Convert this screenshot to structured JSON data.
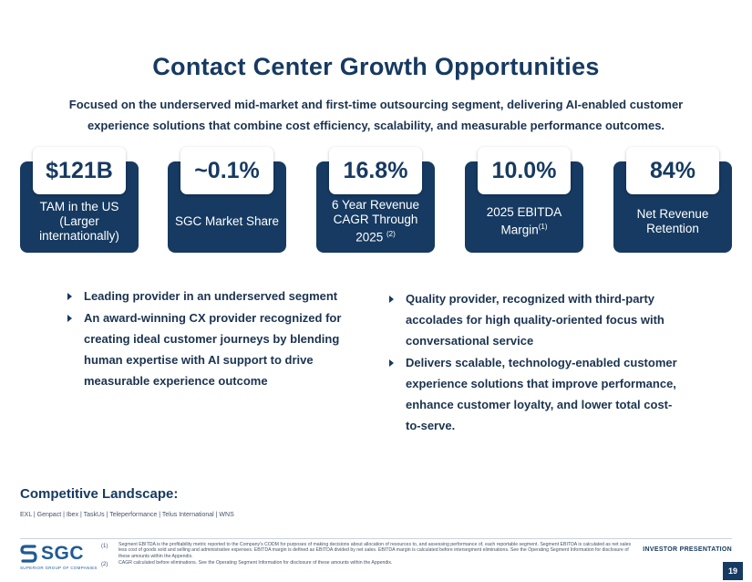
{
  "title": "Contact Center Growth Opportunities",
  "subtitle": "Focused on the underserved mid-market and first-time outsourcing segment, delivering AI-enabled customer experience solutions that combine cost efficiency, scalability, and measurable performance outcomes.",
  "stats": [
    {
      "value": "$121B",
      "label": "TAM in the US (Larger internationally)",
      "note": ""
    },
    {
      "value": "~0.1%",
      "label": "SGC Market Share",
      "note": ""
    },
    {
      "value": "16.8%",
      "label": "6 Year Revenue CAGR Through 2025",
      "note": "(2)"
    },
    {
      "value": "10.0%",
      "label": "2025 EBITDA Margin",
      "note": "(1)"
    },
    {
      "value": "84%",
      "label": "Net Revenue Retention",
      "note": ""
    }
  ],
  "bullets_left": [
    "Leading provider in an underserved segment",
    "An award-winning CX provider recognized for creating ideal customer journeys by blending human expertise with AI support to drive measurable experience outcome"
  ],
  "bullets_right": [
    "Quality provider, recognized with third-party accolades for high quality-oriented focus with conversational service",
    "Delivers scalable, technology-enabled customer experience solutions that improve performance, enhance customer loyalty, and lower total cost-to-serve."
  ],
  "competitive": {
    "heading": "Competitive Landscape:",
    "list": "EXL | Genpact | Ibex | TaskUs | Teleperformance | Telus International | WNS"
  },
  "footnotes": [
    {
      "num": "(1)",
      "text": "Segment EBITDA is the profitability metric reported to the Company's CODM for purposes of making decisions about allocation of resources to, and assessing performance of, each reportable segment. Segment EBITDA is calculated as net sales less cost of goods sold and selling and administrative expenses. EBITDA margin is defined as EBITDA divided by net sales. EBITDA margin is calculated before intersegment eliminations. See the Operating Segment Information for disclosure of these amounts within the Appendix."
    },
    {
      "num": "(2)",
      "text": "CAGR calculated before eliminations. See the Operating Segment Information for disclosure of these amounts within the Appendix."
    }
  ],
  "logo": {
    "text": "SGC",
    "tagline": "SUPERIOR GROUP OF COMPANIES"
  },
  "footer_label": "INVESTOR PRESENTATION",
  "page_number": "19"
}
